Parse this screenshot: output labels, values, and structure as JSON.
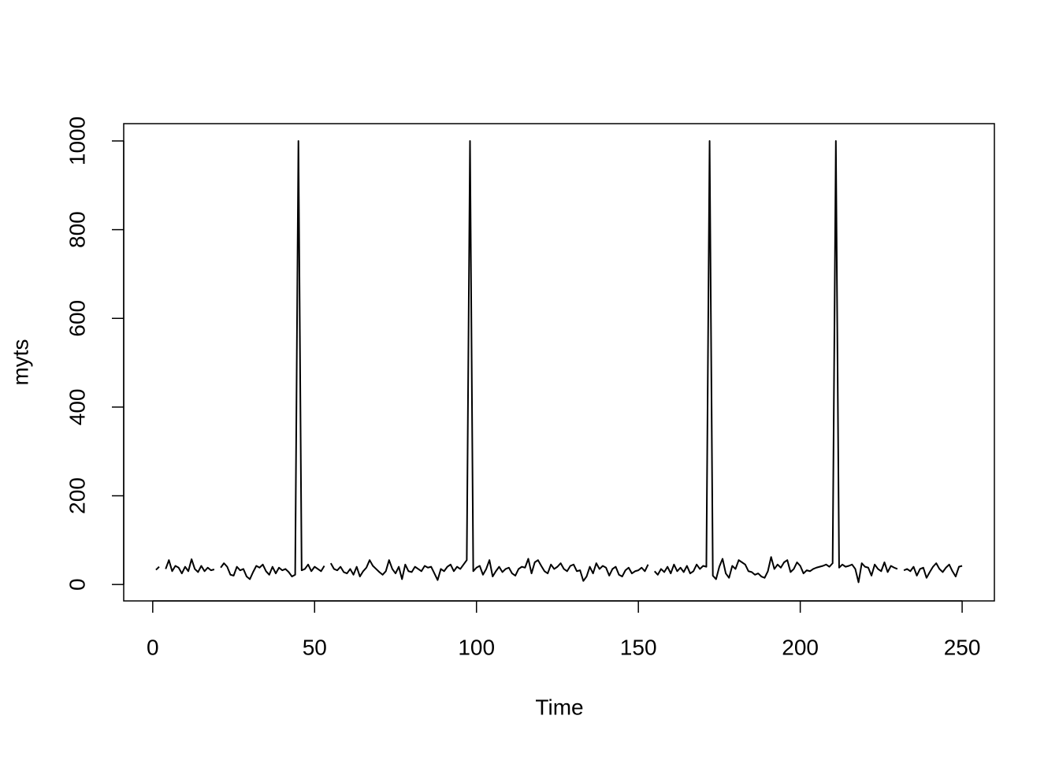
{
  "chart_data": {
    "type": "line",
    "xlabel": "Time",
    "ylabel": "myts",
    "color": "#000000",
    "x": [
      1,
      2,
      3,
      4,
      5,
      6,
      7,
      8,
      9,
      10,
      11,
      12,
      13,
      14,
      15,
      16,
      17,
      18,
      19,
      20,
      21,
      22,
      23,
      24,
      25,
      26,
      27,
      28,
      29,
      30,
      31,
      32,
      33,
      34,
      35,
      36,
      37,
      38,
      39,
      40,
      41,
      42,
      43,
      44,
      45,
      46,
      47,
      48,
      49,
      50,
      51,
      52,
      53,
      54,
      55,
      56,
      57,
      58,
      59,
      60,
      61,
      62,
      63,
      64,
      65,
      66,
      67,
      68,
      69,
      70,
      71,
      72,
      73,
      74,
      75,
      76,
      77,
      78,
      79,
      80,
      81,
      82,
      83,
      84,
      85,
      86,
      87,
      88,
      89,
      90,
      91,
      92,
      93,
      94,
      95,
      96,
      97,
      98,
      99,
      100,
      101,
      102,
      103,
      104,
      105,
      106,
      107,
      108,
      109,
      110,
      111,
      112,
      113,
      114,
      115,
      116,
      117,
      118,
      119,
      120,
      121,
      122,
      123,
      124,
      125,
      126,
      127,
      128,
      129,
      130,
      131,
      132,
      133,
      134,
      135,
      136,
      137,
      138,
      139,
      140,
      141,
      142,
      143,
      144,
      145,
      146,
      147,
      148,
      149,
      150,
      151,
      152,
      153,
      154,
      155,
      156,
      157,
      158,
      159,
      160,
      161,
      162,
      163,
      164,
      165,
      166,
      167,
      168,
      169,
      170,
      171,
      172,
      173,
      174,
      175,
      176,
      177,
      178,
      179,
      180,
      181,
      182,
      183,
      184,
      185,
      186,
      187,
      188,
      189,
      190,
      191,
      192,
      193,
      194,
      195,
      196,
      197,
      198,
      199,
      200,
      201,
      202,
      203,
      204,
      205,
      206,
      207,
      208,
      209,
      210,
      211,
      212,
      213,
      214,
      215,
      216,
      217,
      218,
      219,
      220,
      221,
      222,
      223,
      224,
      225,
      226,
      227,
      228,
      229,
      230,
      231,
      232,
      233,
      234,
      235,
      236,
      237,
      238,
      239,
      240,
      241,
      242,
      243,
      244,
      245,
      246,
      247,
      248,
      249,
      250
    ],
    "values": [
      33,
      40,
      null,
      35,
      55,
      30,
      42,
      38,
      25,
      40,
      30,
      57,
      35,
      28,
      42,
      30,
      38,
      32,
      34,
      null,
      38,
      48,
      40,
      22,
      20,
      40,
      32,
      35,
      18,
      12,
      28,
      42,
      38,
      45,
      30,
      22,
      40,
      25,
      38,
      32,
      35,
      28,
      18,
      22,
      1000,
      32,
      35,
      45,
      30,
      40,
      35,
      30,
      42,
      null,
      48,
      35,
      32,
      40,
      28,
      25,
      35,
      22,
      40,
      18,
      30,
      38,
      55,
      42,
      35,
      28,
      22,
      30,
      55,
      35,
      25,
      40,
      12,
      45,
      30,
      28,
      40,
      35,
      30,
      42,
      38,
      40,
      25,
      10,
      35,
      30,
      40,
      45,
      30,
      40,
      35,
      45,
      55,
      1000,
      30,
      38,
      42,
      22,
      35,
      55,
      18,
      30,
      40,
      28,
      35,
      38,
      25,
      20,
      35,
      40,
      38,
      58,
      25,
      50,
      55,
      42,
      30,
      25,
      45,
      35,
      40,
      48,
      35,
      30,
      42,
      45,
      30,
      32,
      8,
      18,
      40,
      25,
      48,
      35,
      42,
      38,
      20,
      35,
      40,
      22,
      18,
      32,
      38,
      25,
      30,
      32,
      38,
      30,
      45,
      null,
      30,
      22,
      35,
      28,
      40,
      25,
      45,
      30,
      38,
      28,
      42,
      25,
      30,
      45,
      35,
      42,
      40,
      1000,
      20,
      12,
      40,
      58,
      25,
      15,
      42,
      35,
      55,
      50,
      45,
      30,
      28,
      22,
      25,
      18,
      15,
      30,
      62,
      35,
      45,
      38,
      50,
      55,
      28,
      35,
      50,
      42,
      25,
      32,
      30,
      35,
      38,
      40,
      42,
      45,
      40,
      48,
      1000,
      38,
      45,
      40,
      42,
      45,
      35,
      5,
      48,
      40,
      38,
      20,
      45,
      35,
      30,
      50,
      28,
      42,
      38,
      35,
      null,
      32,
      35,
      30,
      40,
      20,
      35,
      38,
      15,
      28,
      40,
      48,
      35,
      28,
      38,
      45,
      30,
      18,
      40,
      42
    ],
    "xlim": [
      -8.96,
      259.96
    ],
    "ylim": [
      -37,
      1039
    ],
    "xticks": [
      0,
      50,
      100,
      150,
      200,
      250
    ],
    "yticks": [
      0,
      200,
      400,
      600,
      800,
      1000
    ]
  }
}
